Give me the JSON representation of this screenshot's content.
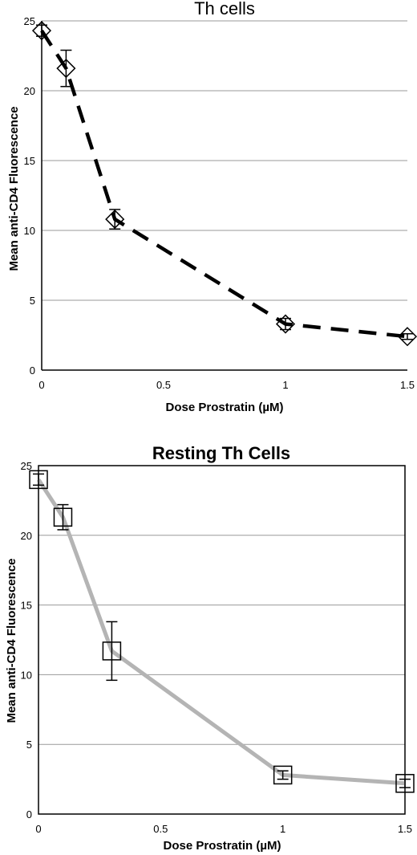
{
  "chart_data": [
    {
      "type": "line",
      "title": "Th cells",
      "xlabel": "Dose Prostratin (µM)",
      "ylabel": "Mean anti-CD4 Fluorescence",
      "xlim": [
        0,
        1.5
      ],
      "ylim": [
        0,
        25
      ],
      "xticks": [
        0,
        0.5,
        1,
        1.5
      ],
      "yticks": [
        0,
        5,
        10,
        15,
        20,
        25
      ],
      "grid": "horizontal",
      "series": [
        {
          "x": [
            0,
            0.1,
            0.3,
            1,
            1.5
          ],
          "y": [
            24.3,
            21.6,
            10.8,
            3.3,
            2.4
          ],
          "error": [
            0.4,
            1.3,
            0.7,
            0.4,
            0.2
          ],
          "marker": "diamond",
          "line_style": "dashed",
          "color": "#000000"
        }
      ]
    },
    {
      "type": "line",
      "title": "Resting Th Cells",
      "xlabel": "Dose Prostratin (µM)",
      "ylabel": "Mean anti-CD4 Fluorescence",
      "xlim": [
        0,
        1.5
      ],
      "ylim": [
        0,
        25
      ],
      "xticks": [
        0,
        0.5,
        1,
        1.5
      ],
      "yticks": [
        0,
        5,
        10,
        15,
        20,
        25
      ],
      "grid": "horizontal",
      "series": [
        {
          "x": [
            0,
            0.1,
            0.3,
            1,
            1.5
          ],
          "y": [
            24.0,
            21.3,
            11.7,
            2.8,
            2.2
          ],
          "error": [
            0.4,
            0.9,
            2.1,
            0.3,
            0.3
          ],
          "marker": "square",
          "line_style": "solid",
          "color": "#b4b4b4"
        }
      ]
    }
  ]
}
